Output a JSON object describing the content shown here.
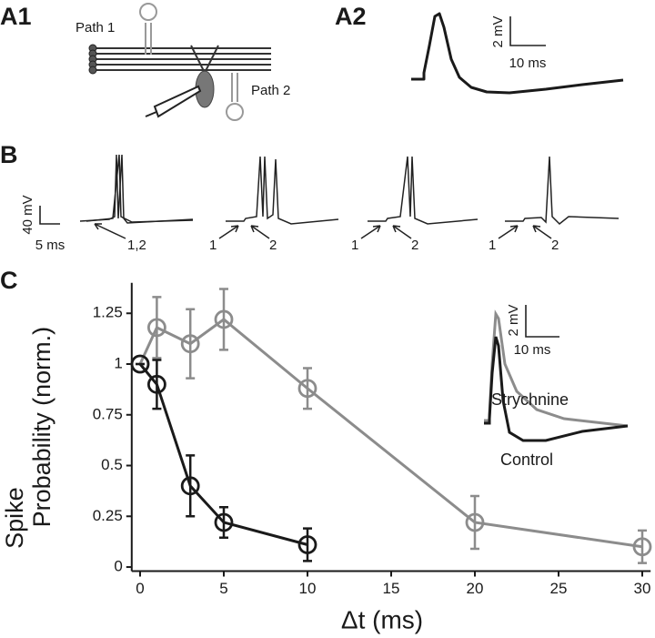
{
  "panels": {
    "a1": {
      "label": "A1",
      "path1": "Path 1",
      "path2": "Path 2"
    },
    "a2": {
      "label": "A2",
      "scale_y": "2 mV",
      "scale_x": "10 ms"
    },
    "b": {
      "label": "B",
      "scale_y": "40 mV",
      "scale_x": "5 ms",
      "arrows": [
        "1,2",
        "1",
        "2",
        "1",
        "2",
        "1",
        "2"
      ]
    },
    "c": {
      "label": "C",
      "inset_scale_y": "2 mV",
      "inset_scale_x": "10 ms"
    }
  },
  "chart_data": {
    "type": "line",
    "xlabel": "Δt (ms)",
    "ylabel": [
      "Spike",
      "Probability (norm.)"
    ],
    "xlim": [
      -0.5,
      30.5
    ],
    "ylim": [
      -0.02,
      1.4
    ],
    "xticks": [
      0,
      5,
      10,
      15,
      20,
      25,
      30
    ],
    "yticks": [
      0,
      0.25,
      0.5,
      0.75,
      1,
      1.25
    ],
    "series": [
      {
        "name": "Strychnine",
        "color": "#8c8c8c",
        "x": [
          0,
          1,
          3,
          5,
          10,
          20,
          30
        ],
        "values": [
          1,
          1.18,
          1.1,
          1.22,
          0.88,
          0.22,
          0.1
        ],
        "errors": [
          0,
          0.15,
          0.17,
          0.15,
          0.1,
          0.13,
          0.08
        ]
      },
      {
        "name": "Control",
        "color": "#1a1a1a",
        "x": [
          0,
          1,
          3,
          5,
          10
        ],
        "values": [
          1,
          0.9,
          0.4,
          0.22,
          0.11
        ],
        "errors": [
          0,
          0.12,
          0.15,
          0.075,
          0.08
        ]
      }
    ]
  }
}
